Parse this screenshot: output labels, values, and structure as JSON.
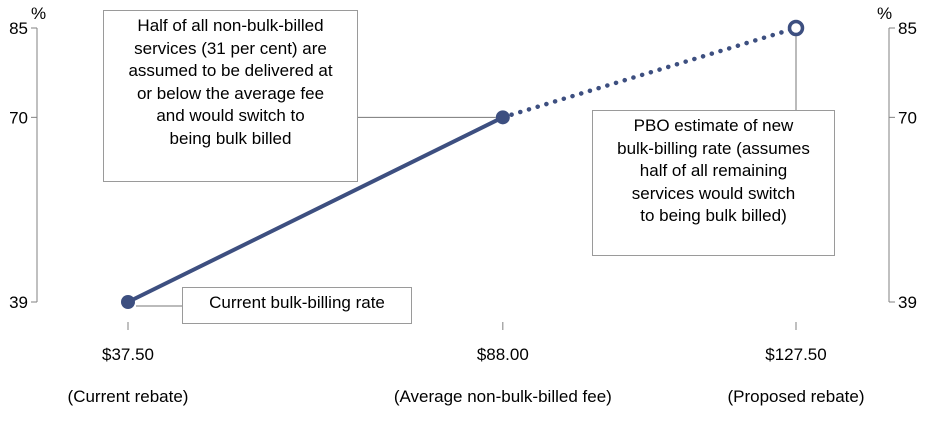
{
  "chart_data": {
    "type": "line",
    "x_categories": [
      "$37.50",
      "$88.00",
      "$127.50"
    ],
    "x_values": [
      37.5,
      88.0,
      127.5
    ],
    "x_sublabels": [
      "(Current rebate)",
      "(Average non-bulk-billed fee)",
      "(Proposed rebate)"
    ],
    "y_unit": "%",
    "y_ticks": [
      39,
      70,
      85
    ],
    "y_ticks_right": [
      39,
      70,
      85
    ],
    "ylim": [
      39,
      85
    ],
    "xlim": [
      37.5,
      127.5
    ],
    "series": [
      {
        "style": "solid",
        "points": [
          {
            "x": 37.5,
            "y": 39
          },
          {
            "x": 88.0,
            "y": 70
          }
        ]
      },
      {
        "style": "dotted",
        "points": [
          {
            "x": 88.0,
            "y": 70
          },
          {
            "x": 127.5,
            "y": 85
          }
        ]
      }
    ],
    "markers": [
      {
        "x": 37.5,
        "y": 39,
        "style": "filled"
      },
      {
        "x": 88.0,
        "y": 70,
        "style": "filled"
      },
      {
        "x": 127.5,
        "y": 85,
        "style": "hollow"
      }
    ],
    "annotations": [
      {
        "id": "current",
        "lines": [
          "Current bulk-billing rate"
        ]
      },
      {
        "id": "half",
        "lines": [
          "Half of all non-bulk-billed",
          "services (31 per cent) are",
          "assumed to be delivered at",
          "or below the average fee",
          "and would switch to",
          "being bulk billed"
        ]
      },
      {
        "id": "pbo",
        "lines": [
          "PBO estimate of new",
          "bulk-billing rate (assumes",
          "half of all remaining",
          "services would switch",
          "to being bulk billed)"
        ]
      }
    ],
    "colors": {
      "line": "#3d4f80",
      "axis": "#808080",
      "box_border": "#9a9a9a"
    },
    "grid": false
  }
}
